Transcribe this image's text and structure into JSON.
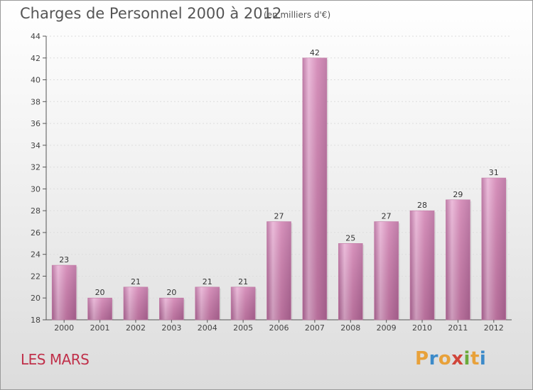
{
  "header": {
    "title": "Charges de Personnel 2000 à 2012",
    "unit": "(en milliers d'€)"
  },
  "footer": {
    "commune": "LES MARS"
  },
  "logo": {
    "letters": [
      "P",
      "r",
      "o",
      "x",
      "i",
      "t",
      "i"
    ],
    "colors": [
      "#e8a13a",
      "#3c8ac9",
      "#e8a13a",
      "#d0453a",
      "#6aaa3a",
      "#e8a13a",
      "#3c8ac9"
    ]
  },
  "colors": {
    "bar": "#d07fb0",
    "bar_light": "#e8b0d4",
    "bar_dark": "#b5689a",
    "axis": "#555555",
    "grid": "#dddddd"
  },
  "chart_data": {
    "type": "bar",
    "title": "Charges de Personnel 2000 à 2012",
    "subtitle": "(en milliers d'€)",
    "categories": [
      "2000",
      "2001",
      "2002",
      "2003",
      "2004",
      "2005",
      "2006",
      "2007",
      "2008",
      "2009",
      "2010",
      "2011",
      "2012"
    ],
    "values": [
      23,
      20,
      21,
      20,
      21,
      21,
      27,
      42,
      25,
      27,
      28,
      29,
      31
    ],
    "ylim": [
      18,
      44
    ],
    "yticks": [
      18,
      20,
      22,
      24,
      26,
      28,
      30,
      32,
      34,
      36,
      38,
      40,
      42,
      44
    ],
    "grid": true,
    "legend": "none"
  }
}
